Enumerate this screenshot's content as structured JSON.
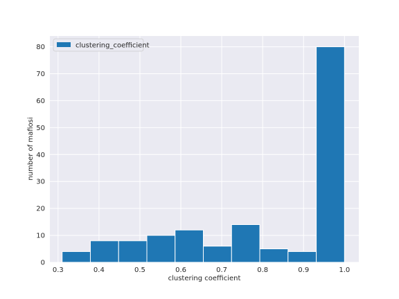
{
  "chart_data": {
    "type": "bar",
    "title": "",
    "xlabel": "clustering coefficient",
    "ylabel": "number of mafiosi",
    "xlim": [
      0.28,
      1.035
    ],
    "ylim": [
      0,
      84
    ],
    "xticks": [
      0.3,
      0.4,
      0.5,
      0.6,
      0.7,
      0.8,
      0.9,
      1.0
    ],
    "xtick_labels": [
      "0.3",
      "0.4",
      "0.5",
      "0.6",
      "0.7",
      "0.8",
      "0.9",
      "1.0"
    ],
    "yticks": [
      0,
      10,
      20,
      30,
      40,
      50,
      60,
      70,
      80
    ],
    "ytick_labels": [
      "0",
      "10",
      "20",
      "30",
      "40",
      "50",
      "60",
      "70",
      "80"
    ],
    "bin_edges": [
      0.31,
      0.379,
      0.448,
      0.517,
      0.586,
      0.655,
      0.724,
      0.793,
      0.862,
      0.931,
      1.0
    ],
    "series": [
      {
        "name": "clustering_coefficient",
        "values": [
          4,
          8,
          8,
          10,
          12,
          6,
          14,
          5,
          4,
          80
        ]
      }
    ],
    "grid": true,
    "legend_position": "top-left",
    "colors": {
      "bar": "#1f77b4",
      "plot_background": "#eaeaf2",
      "grid": "#ffffff",
      "text": "#262626"
    }
  }
}
